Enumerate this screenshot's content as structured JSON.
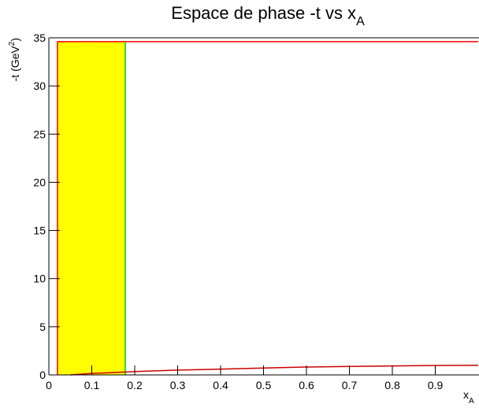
{
  "chart_data": {
    "type": "line",
    "title": [
      "Espace de phase -t vs x",
      "A"
    ],
    "ylabel": [
      "-t (GeV",
      "2",
      ")"
    ],
    "xlabel": [
      "x",
      "A"
    ],
    "xlim": [
      0,
      1
    ],
    "ylim": [
      0,
      35
    ],
    "xticks": [
      0,
      0.1,
      0.2,
      0.3,
      0.4,
      0.5,
      0.6,
      0.7,
      0.8,
      0.9
    ],
    "yticks": [
      0,
      5,
      10,
      15,
      20,
      25,
      30,
      35
    ],
    "series": [
      {
        "color": "#ffff00",
        "fill": true,
        "x": [
          0.02,
          0.02,
          0.178,
          0.178
        ],
        "values": [
          0,
          34.6,
          34.6,
          0
        ]
      },
      {
        "color": "#ff0000",
        "x": [
          0.02,
          0.02,
          1
        ],
        "values": [
          0,
          34.6,
          34.6
        ]
      },
      {
        "color": "#00cc00",
        "x": [
          0.178,
          0.178
        ],
        "values": [
          0,
          34.6
        ]
      },
      {
        "color": "#cc0000",
        "x": [
          0.05,
          0.1,
          0.2,
          0.3,
          0.4,
          0.5,
          0.6,
          0.7,
          0.8,
          0.9,
          1
        ],
        "values": [
          0,
          0.15,
          0.35,
          0.5,
          0.6,
          0.72,
          0.82,
          0.88,
          0.93,
          0.98,
          1.0
        ]
      }
    ]
  }
}
